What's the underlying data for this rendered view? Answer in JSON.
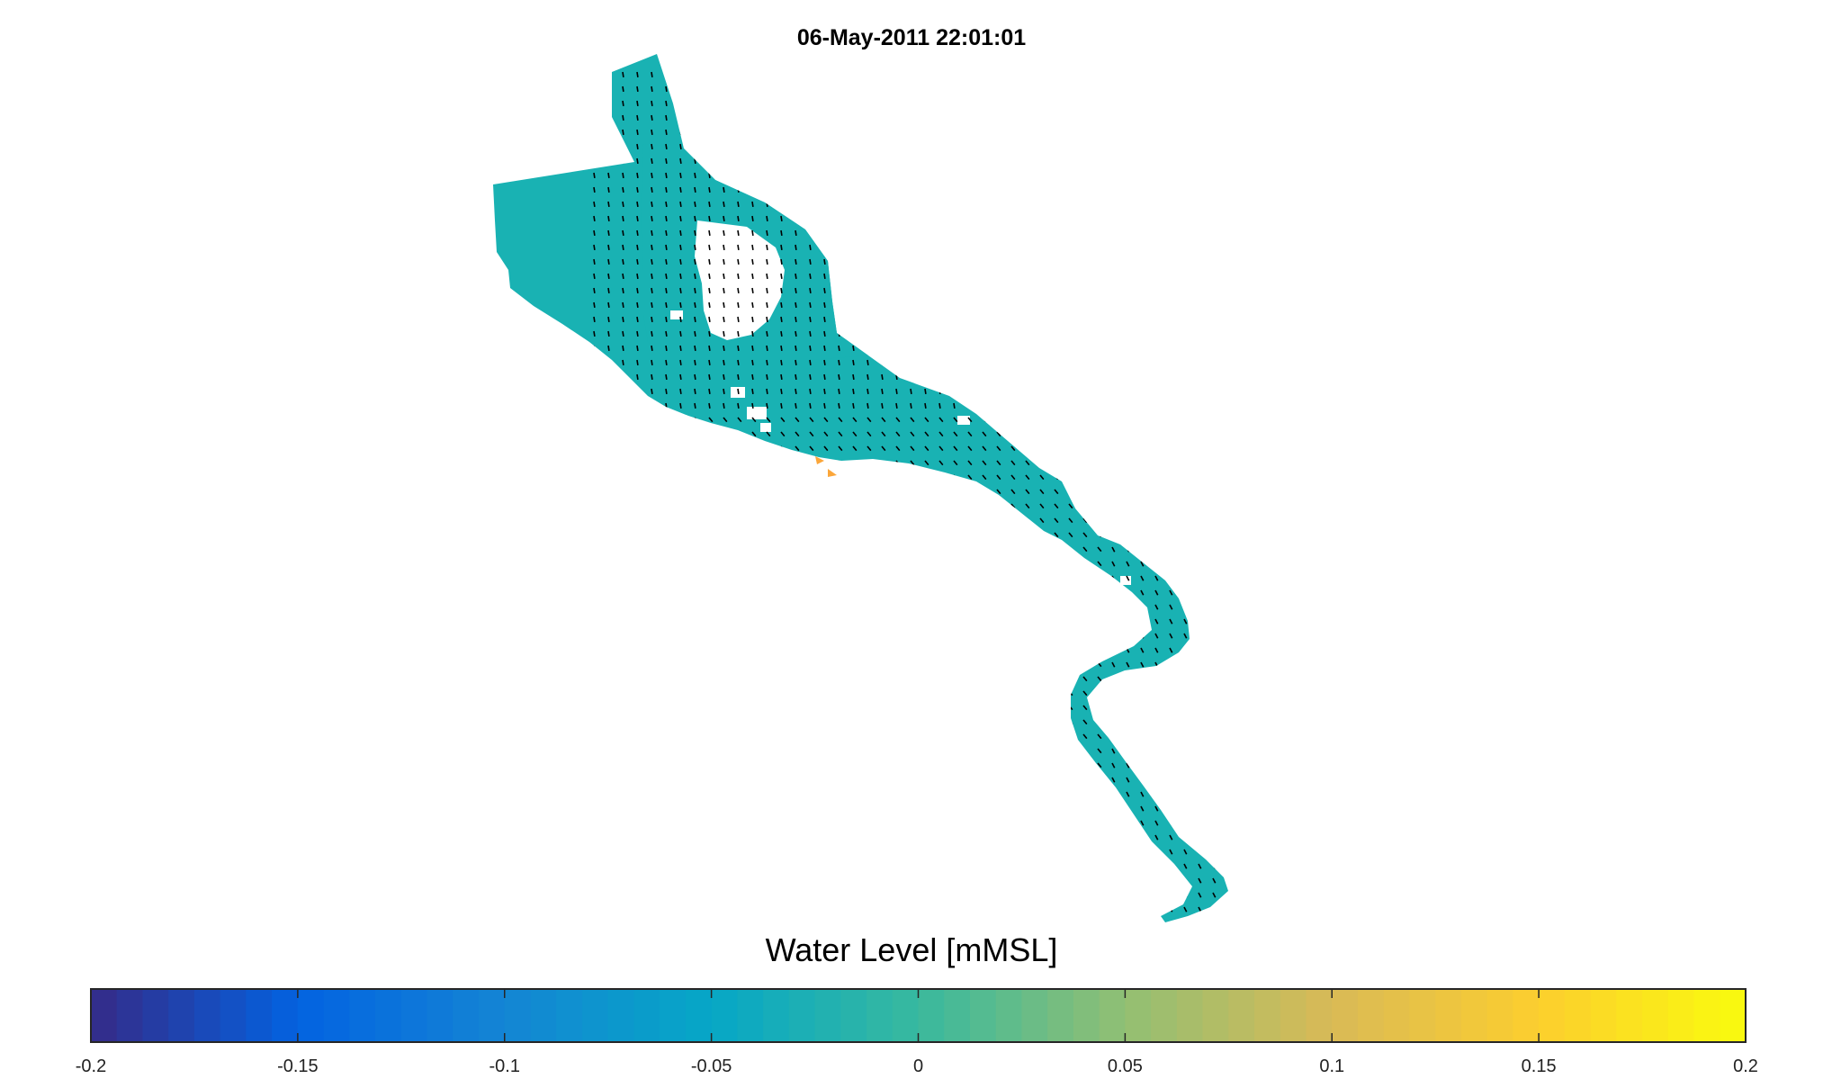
{
  "title": "06-May-2011 22:01:01",
  "colorbar": {
    "label": "Water Level [mMSL]",
    "min": -0.2,
    "max": 0.2,
    "ticks": [
      "-0.2",
      "-0.15",
      "-0.1",
      "-0.05",
      "0",
      "0.05",
      "0.1",
      "0.15",
      "0.2"
    ],
    "colormap": "parula",
    "stops": [
      "#352a87",
      "#0363e1",
      "#1485d4",
      "#06a7c6",
      "#38b99e",
      "#92bf73",
      "#d9ba56",
      "#fcce2e",
      "#f9fb0e"
    ]
  },
  "map": {
    "water_color": "#19b2b3",
    "vector_color": "#000000",
    "highlight_color": "#fba63a"
  }
}
